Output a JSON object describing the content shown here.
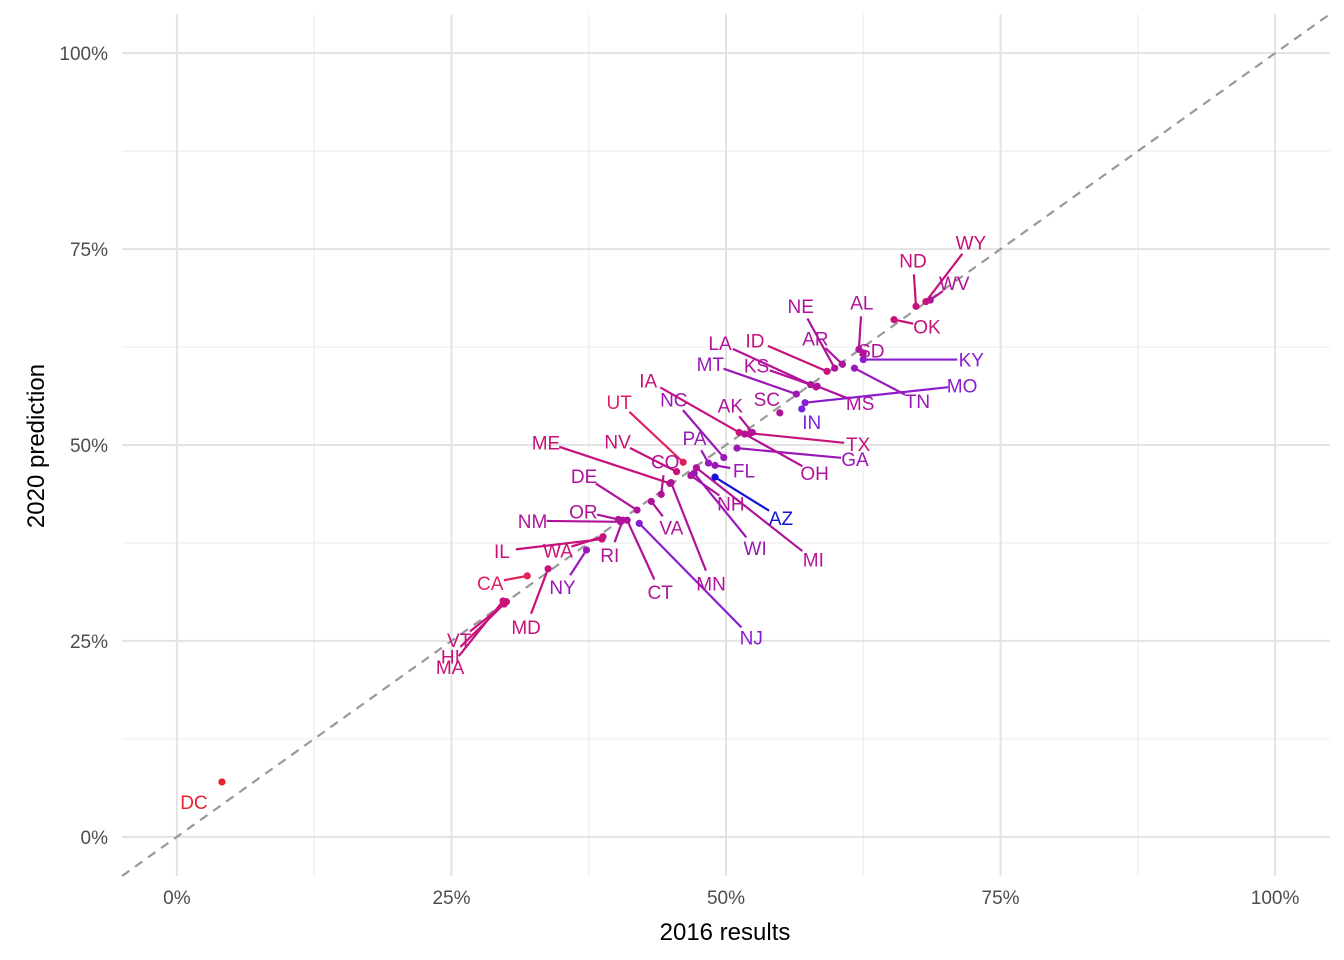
{
  "chart_data": {
    "type": "scatter",
    "title": "",
    "xlabel": "2016 results",
    "ylabel": "2020 prediction",
    "xlim": [
      -0.05,
      1.05
    ],
    "ylim": [
      -0.05,
      1.05
    ],
    "x_ticks": [
      {
        "value": 0,
        "label": "0%"
      },
      {
        "value": 0.25,
        "label": "25%"
      },
      {
        "value": 0.5,
        "label": "50%"
      },
      {
        "value": 0.75,
        "label": "75%"
      },
      {
        "value": 1,
        "label": "100%"
      }
    ],
    "y_ticks": [
      {
        "value": 0,
        "label": "0%"
      },
      {
        "value": 0.25,
        "label": "25%"
      },
      {
        "value": 0.5,
        "label": "50%"
      },
      {
        "value": 0.75,
        "label": "75%"
      },
      {
        "value": 1,
        "label": "100%"
      }
    ],
    "grid": true,
    "reference_line": {
      "slope": 1,
      "intercept": 0,
      "style": "dashed",
      "color": "#999999"
    },
    "points": [
      {
        "state": "DC",
        "x": 0.041,
        "y": 0.07,
        "color": "#e8222e"
      },
      {
        "state": "HI",
        "x": 0.3,
        "y": 0.3,
        "color": "#c8117a"
      },
      {
        "state": "VT",
        "x": 0.298,
        "y": 0.297,
        "color": "#c8117a"
      },
      {
        "state": "MA",
        "x": 0.297,
        "y": 0.301,
        "color": "#c8117a"
      },
      {
        "state": "CA",
        "x": 0.319,
        "y": 0.333,
        "color": "#e0225a"
      },
      {
        "state": "MD",
        "x": 0.338,
        "y": 0.342,
        "color": "#c8117a"
      },
      {
        "state": "NY",
        "x": 0.373,
        "y": 0.366,
        "color": "#9b18b8"
      },
      {
        "state": "WA",
        "x": 0.388,
        "y": 0.383,
        "color": "#c8117a"
      },
      {
        "state": "IL",
        "x": 0.387,
        "y": 0.38,
        "color": "#c8117a"
      },
      {
        "state": "RI",
        "x": 0.406,
        "y": 0.404,
        "color": "#b0139a"
      },
      {
        "state": "CT",
        "x": 0.41,
        "y": 0.404,
        "color": "#b0139a"
      },
      {
        "state": "OR",
        "x": 0.402,
        "y": 0.405,
        "color": "#b0139a"
      },
      {
        "state": "NM",
        "x": 0.404,
        "y": 0.402,
        "color": "#b0139a"
      },
      {
        "state": "NJ",
        "x": 0.421,
        "y": 0.4,
        "color": "#8a1ccf"
      },
      {
        "state": "DE",
        "x": 0.419,
        "y": 0.417,
        "color": "#b0139a"
      },
      {
        "state": "VA",
        "x": 0.432,
        "y": 0.428,
        "color": "#b0139a"
      },
      {
        "state": "CO",
        "x": 0.441,
        "y": 0.437,
        "color": "#b0139a"
      },
      {
        "state": "ME",
        "x": 0.449,
        "y": 0.451,
        "color": "#c8117a"
      },
      {
        "state": "NH",
        "x": 0.468,
        "y": 0.461,
        "color": "#b0139a"
      },
      {
        "state": "MN",
        "x": 0.45,
        "y": 0.452,
        "color": "#b0139a"
      },
      {
        "state": "NV",
        "x": 0.455,
        "y": 0.466,
        "color": "#c8117a"
      },
      {
        "state": "UT",
        "x": 0.461,
        "y": 0.478,
        "color": "#e0225a"
      },
      {
        "state": "WI",
        "x": 0.471,
        "y": 0.464,
        "color": "#9b18b8"
      },
      {
        "state": "MI",
        "x": 0.473,
        "y": 0.471,
        "color": "#b0139a"
      },
      {
        "state": "PA",
        "x": 0.484,
        "y": 0.477,
        "color": "#9b18b8"
      },
      {
        "state": "FL",
        "x": 0.49,
        "y": 0.474,
        "color": "#9b18b8"
      },
      {
        "state": "AZ",
        "x": 0.49,
        "y": 0.459,
        "color": "#1212d8"
      },
      {
        "state": "NC",
        "x": 0.498,
        "y": 0.484,
        "color": "#9b18b8"
      },
      {
        "state": "GA",
        "x": 0.51,
        "y": 0.496,
        "color": "#9b18b8"
      },
      {
        "state": "IA",
        "x": 0.512,
        "y": 0.516,
        "color": "#c8117a"
      },
      {
        "state": "OH",
        "x": 0.517,
        "y": 0.514,
        "color": "#b0139a"
      },
      {
        "state": "TX",
        "x": 0.522,
        "y": 0.515,
        "color": "#c8117a"
      },
      {
        "state": "SC",
        "x": 0.549,
        "y": 0.541,
        "color": "#b0139a"
      },
      {
        "state": "AK",
        "x": 0.524,
        "y": 0.516,
        "color": "#b0139a"
      },
      {
        "state": "MS",
        "x": 0.583,
        "y": 0.575,
        "color": "#b0139a"
      },
      {
        "state": "MO",
        "x": 0.572,
        "y": 0.554,
        "color": "#8a1ccf"
      },
      {
        "state": "IN",
        "x": 0.569,
        "y": 0.546,
        "color": "#7b22e0"
      },
      {
        "state": "MT",
        "x": 0.564,
        "y": 0.565,
        "color": "#9b18b8"
      },
      {
        "state": "KS",
        "x": 0.577,
        "y": 0.577,
        "color": "#b0139a"
      },
      {
        "state": "LA",
        "x": 0.582,
        "y": 0.574,
        "color": "#b0139a"
      },
      {
        "state": "NE",
        "x": 0.599,
        "y": 0.598,
        "color": "#b0139a"
      },
      {
        "state": "TN",
        "x": 0.617,
        "y": 0.598,
        "color": "#9b18b8"
      },
      {
        "state": "AR",
        "x": 0.606,
        "y": 0.603,
        "color": "#b0139a"
      },
      {
        "state": "ID",
        "x": 0.592,
        "y": 0.594,
        "color": "#c8117a"
      },
      {
        "state": "SD",
        "x": 0.625,
        "y": 0.617,
        "color": "#b0139a"
      },
      {
        "state": "KY",
        "x": 0.625,
        "y": 0.609,
        "color": "#8a1ccf"
      },
      {
        "state": "AL",
        "x": 0.621,
        "y": 0.622,
        "color": "#b0139a"
      },
      {
        "state": "OK",
        "x": 0.653,
        "y": 0.66,
        "color": "#c8117a"
      },
      {
        "state": "ND",
        "x": 0.673,
        "y": 0.677,
        "color": "#c8117a"
      },
      {
        "state": "WV",
        "x": 0.686,
        "y": 0.685,
        "color": "#b0139a"
      },
      {
        "state": "WY",
        "x": 0.682,
        "y": 0.683,
        "color": "#c8117a"
      }
    ]
  }
}
